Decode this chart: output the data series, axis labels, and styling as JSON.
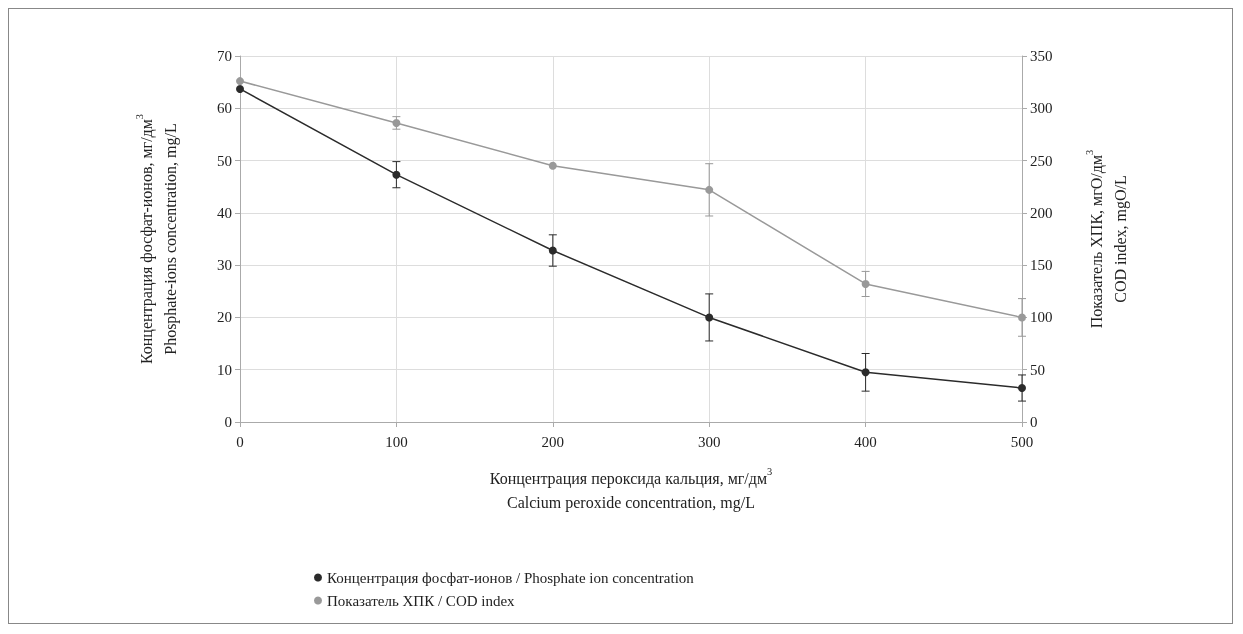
{
  "chart_data": {
    "type": "line",
    "xlabel": "Концентрация пероксида кальция, мг/дм$^{3}$\nCalcium peroxide concentration, mg/L",
    "ylabel": "Концентрация фосфат-ионов, мг/дм$^{3}$\nPhosphate-ions concentration, mg/L",
    "y2label": "Показатель ХПК, мгО/дм$^{3}$\nCOD index, mgO/L",
    "x": [
      0,
      100,
      200,
      300,
      400,
      500
    ],
    "series": [
      {
        "name": "Концентрация фосфат-ионов / Phosphate ion concentration",
        "color": "#2b2b2b",
        "values": [
          63.7,
          47.3,
          32.8,
          20.0,
          9.5,
          6.5
        ],
        "errors": [
          null,
          2.5,
          3,
          4.5,
          3.6,
          2.5
        ]
      },
      {
        "name": "Показатель ХПК / COD index",
        "color": "#999999",
        "axis": "y2",
        "values": [
          326,
          286,
          245,
          222,
          132,
          100
        ],
        "errors": [
          null,
          6,
          null,
          25,
          12,
          18
        ]
      }
    ],
    "xlim": [
      0,
      500
    ],
    "xticks": [
      0,
      100,
      200,
      300,
      400,
      500
    ],
    "ylim": [
      0,
      70
    ],
    "yticks": [
      0,
      10,
      20,
      30,
      40,
      50,
      60,
      70
    ],
    "y2lim": [
      0,
      350
    ],
    "y2ticks": [
      0,
      50,
      100,
      150,
      200,
      250,
      300,
      350
    ],
    "grid": true,
    "legend": "bottom",
    "marker": "circle",
    "line_style": "solid"
  }
}
